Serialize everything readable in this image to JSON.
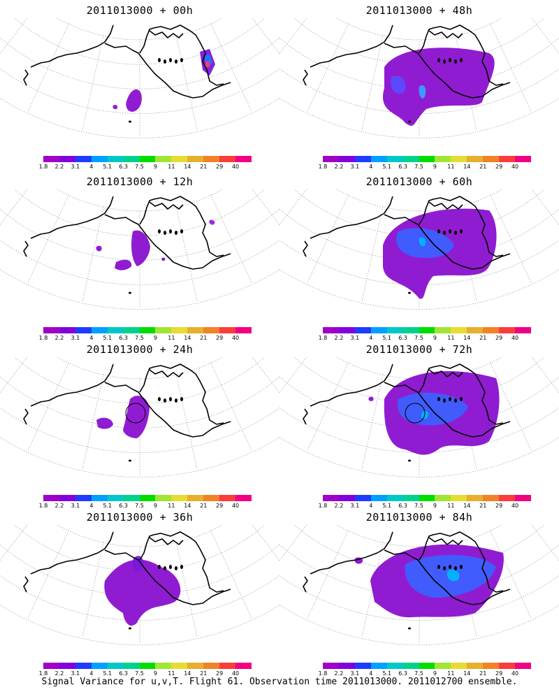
{
  "caption": "Signal Variance for u,v,T. Flight 61. Observation time 2011013000. 2011012700 ensemble.",
  "colorbar": {
    "colors": [
      "#a000c8",
      "#8200dc",
      "#1e3cff",
      "#00a0ff",
      "#00c8c8",
      "#00d28c",
      "#00dc00",
      "#a0e632",
      "#e6dc32",
      "#e6af2d",
      "#f08228",
      "#fa3c3c",
      "#f00082"
    ],
    "labels": [
      "1.8",
      "2.2",
      "3.1",
      "4",
      "5.1",
      "6.3",
      "7.5",
      "9",
      "11",
      "14",
      "21",
      "29",
      "40"
    ]
  },
  "panels": [
    {
      "title": "2011013000 + 00h",
      "lead": "00h",
      "circle": false
    },
    {
      "title": "2011013000 + 48h",
      "lead": "48h",
      "circle": false
    },
    {
      "title": "2011013000 + 12h",
      "lead": "12h",
      "circle": false
    },
    {
      "title": "2011013000 + 60h",
      "lead": "60h",
      "circle": false
    },
    {
      "title": "2011013000 + 24h",
      "lead": "24h",
      "circle": true
    },
    {
      "title": "2011013000 + 72h",
      "lead": "72h",
      "circle": true
    },
    {
      "title": "2011013000 + 36h",
      "lead": "36h",
      "circle": false
    },
    {
      "title": "2011013000 + 84h",
      "lead": "84h",
      "circle": false
    }
  ]
}
